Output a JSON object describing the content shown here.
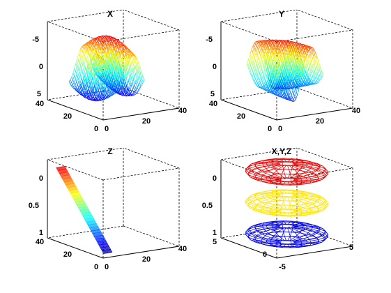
{
  "chart_data": [
    {
      "type": "surface",
      "title": "X",
      "xlim": [
        0,
        40
      ],
      "ylim": [
        0,
        40
      ],
      "zlim": [
        -5,
        5
      ],
      "xticks": [
        "0",
        "20",
        "40"
      ],
      "yticks": [
        "0",
        "20",
        "40"
      ],
      "zticks": [
        "-5",
        "0",
        "5"
      ],
      "colormap": "jet"
    },
    {
      "type": "surface",
      "title": "Y",
      "xlim": [
        0,
        40
      ],
      "ylim": [
        0,
        40
      ],
      "zlim": [
        -5,
        5
      ],
      "xticks": [
        "0",
        "20",
        "40"
      ],
      "yticks": [
        "0",
        "20",
        "40"
      ],
      "zticks": [
        "-5",
        "0",
        "5"
      ],
      "colormap": "jet"
    },
    {
      "type": "surface",
      "title": "Z",
      "xlim": [
        0,
        40
      ],
      "ylim": [
        0,
        40
      ],
      "zlim": [
        0,
        1
      ],
      "xticks": [
        "0",
        "20",
        "40"
      ],
      "yticks": [
        "0",
        "20",
        "40"
      ],
      "zticks": [
        "0",
        "0.5",
        "1"
      ],
      "colormap": "jet"
    },
    {
      "type": "surface",
      "title": "X,Y,Z",
      "xlim": [
        -5,
        5
      ],
      "ylim": [
        -5,
        5
      ],
      "zlim": [
        0,
        1
      ],
      "xticks": [
        "-5",
        "5"
      ],
      "yticks": [
        "0",
        "5"
      ],
      "zticks": [
        "0",
        "0.5",
        "1"
      ],
      "colormap": "jet"
    }
  ]
}
